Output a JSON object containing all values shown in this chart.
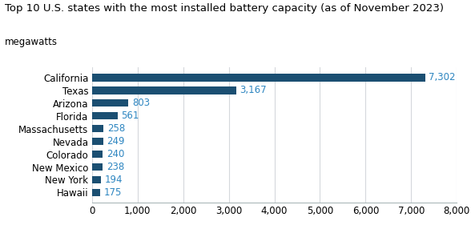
{
  "title_line1": "Top 10 U.S. states with the most installed battery capacity (as of November 2023)",
  "title_line2": "megawatts",
  "states": [
    "Hawaii",
    "New York",
    "New Mexico",
    "Colorado",
    "Nevada",
    "Massachusetts",
    "Florida",
    "Arizona",
    "Texas",
    "California"
  ],
  "values": [
    175,
    194,
    238,
    240,
    249,
    258,
    561,
    803,
    3167,
    7302
  ],
  "labels": [
    "175",
    "194",
    "238",
    "240",
    "249",
    "258",
    "561",
    "803",
    "3,167",
    "7,302"
  ],
  "bar_color": "#1b4f72",
  "label_color": "#2e86c1",
  "background_color": "#ffffff",
  "xlim": [
    0,
    8000
  ],
  "xticks": [
    0,
    1000,
    2000,
    3000,
    4000,
    5000,
    6000,
    7000,
    8000
  ],
  "xtick_labels": [
    "0",
    "1,000",
    "2,000",
    "3,000",
    "4,000",
    "5,000",
    "6,000",
    "7,000",
    "8,000"
  ],
  "title_fontsize": 9.5,
  "subtitle_fontsize": 8.5,
  "tick_fontsize": 8.5,
  "label_fontsize": 8.5,
  "bar_height": 0.6,
  "grid_color": "#d5d8dc",
  "spine_color": "#aab7b8"
}
